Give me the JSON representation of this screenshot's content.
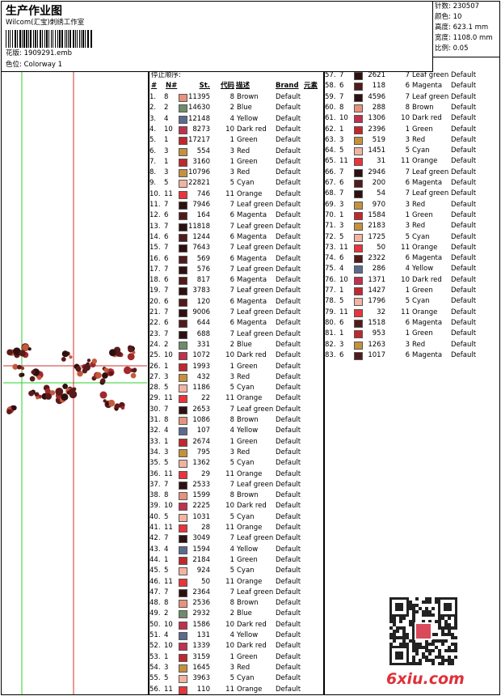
{
  "header": {
    "title": "生产作业图",
    "studio": "Wilcom(汇宝)刺绣工作室",
    "design": "花版: 1909291.emb",
    "colorway": "色位: Colorway 1"
  },
  "info": [
    "针数: 230507",
    "颜色: 10",
    "高度: 623.1 mm",
    "宽度: 1108.0 mm",
    "比例: 0.05"
  ],
  "table": {
    "title": "停止顺序:",
    "columns": [
      "#",
      "N#",
      "St.",
      "代码",
      "描述",
      "Brand",
      "元素"
    ],
    "needle_colors": {
      "1": "#c0282e",
      "2": "#6f8c6a",
      "3": "#c4913e",
      "4": "#5c6a8e",
      "5": "#f2b3a2",
      "6": "#521a1a",
      "7": "#2e1010",
      "8": "#e8917e",
      "10": "#c2304e",
      "11": "#e8343a"
    },
    "rows": [
      [
        "1.",
        "8",
        "11395",
        "8",
        "Brown",
        "Default"
      ],
      [
        "2.",
        "2",
        "14630",
        "2",
        "Blue",
        "Default"
      ],
      [
        "3.",
        "4",
        "12148",
        "4",
        "Yellow",
        "Default"
      ],
      [
        "4.",
        "10",
        "8273",
        "10",
        "Dark red",
        "Default"
      ],
      [
        "5.",
        "1",
        "17217",
        "1",
        "Green",
        "Default"
      ],
      [
        "6.",
        "3",
        "554",
        "3",
        "Red",
        "Default"
      ],
      [
        "7.",
        "1",
        "3160",
        "1",
        "Green",
        "Default"
      ],
      [
        "8.",
        "3",
        "10796",
        "3",
        "Red",
        "Default"
      ],
      [
        "9.",
        "5",
        "22821",
        "5",
        "Cyan",
        "Default"
      ],
      [
        "10.",
        "11",
        "746",
        "11",
        "Orange",
        "Default"
      ],
      [
        "11.",
        "7",
        "7946",
        "7",
        "Leaf green",
        "Default"
      ],
      [
        "12.",
        "6",
        "164",
        "6",
        "Magenta",
        "Default"
      ],
      [
        "13.",
        "7",
        "11818",
        "7",
        "Leaf green",
        "Default"
      ],
      [
        "14.",
        "6",
        "1244",
        "6",
        "Magenta",
        "Default"
      ],
      [
        "15.",
        "7",
        "7643",
        "7",
        "Leaf green",
        "Default"
      ],
      [
        "16.",
        "6",
        "569",
        "6",
        "Magenta",
        "Default"
      ],
      [
        "17.",
        "7",
        "576",
        "7",
        "Leaf green",
        "Default"
      ],
      [
        "18.",
        "6",
        "817",
        "6",
        "Magenta",
        "Default"
      ],
      [
        "19.",
        "7",
        "3783",
        "7",
        "Leaf green",
        "Default"
      ],
      [
        "20.",
        "6",
        "120",
        "6",
        "Magenta",
        "Default"
      ],
      [
        "21.",
        "7",
        "9006",
        "7",
        "Leaf green",
        "Default"
      ],
      [
        "22.",
        "6",
        "644",
        "6",
        "Magenta",
        "Default"
      ],
      [
        "23.",
        "7",
        "688",
        "7",
        "Leaf green",
        "Default"
      ],
      [
        "24.",
        "2",
        "331",
        "2",
        "Blue",
        "Default"
      ],
      [
        "25.",
        "10",
        "1072",
        "10",
        "Dark red",
        "Default"
      ],
      [
        "26.",
        "1",
        "1993",
        "1",
        "Green",
        "Default"
      ],
      [
        "27.",
        "3",
        "432",
        "3",
        "Red",
        "Default"
      ],
      [
        "28.",
        "5",
        "1186",
        "5",
        "Cyan",
        "Default"
      ],
      [
        "29.",
        "11",
        "22",
        "11",
        "Orange",
        "Default"
      ],
      [
        "30.",
        "7",
        "2653",
        "7",
        "Leaf green",
        "Default"
      ],
      [
        "31.",
        "8",
        "1086",
        "8",
        "Brown",
        "Default"
      ],
      [
        "32.",
        "4",
        "107",
        "4",
        "Yellow",
        "Default"
      ],
      [
        "33.",
        "1",
        "2674",
        "1",
        "Green",
        "Default"
      ],
      [
        "34.",
        "3",
        "795",
        "3",
        "Red",
        "Default"
      ],
      [
        "35.",
        "5",
        "1362",
        "5",
        "Cyan",
        "Default"
      ],
      [
        "36.",
        "11",
        "29",
        "11",
        "Orange",
        "Default"
      ],
      [
        "37.",
        "7",
        "2533",
        "7",
        "Leaf green",
        "Default"
      ],
      [
        "38.",
        "8",
        "1599",
        "8",
        "Brown",
        "Default"
      ],
      [
        "39.",
        "10",
        "2225",
        "10",
        "Dark red",
        "Default"
      ],
      [
        "40.",
        "5",
        "1031",
        "5",
        "Cyan",
        "Default"
      ],
      [
        "41.",
        "11",
        "28",
        "11",
        "Orange",
        "Default"
      ],
      [
        "42.",
        "7",
        "3049",
        "7",
        "Leaf green",
        "Default"
      ],
      [
        "43.",
        "4",
        "1594",
        "4",
        "Yellow",
        "Default"
      ],
      [
        "44.",
        "1",
        "2184",
        "1",
        "Green",
        "Default"
      ],
      [
        "45.",
        "5",
        "924",
        "5",
        "Cyan",
        "Default"
      ],
      [
        "46.",
        "11",
        "50",
        "11",
        "Orange",
        "Default"
      ],
      [
        "47.",
        "7",
        "2364",
        "7",
        "Leaf green",
        "Default"
      ],
      [
        "48.",
        "8",
        "2536",
        "8",
        "Brown",
        "Default"
      ],
      [
        "49.",
        "2",
        "2932",
        "2",
        "Blue",
        "Default"
      ],
      [
        "50.",
        "10",
        "1586",
        "10",
        "Dark red",
        "Default"
      ],
      [
        "51.",
        "4",
        "131",
        "4",
        "Yellow",
        "Default"
      ],
      [
        "52.",
        "10",
        "1339",
        "10",
        "Dark red",
        "Default"
      ],
      [
        "53.",
        "1",
        "3159",
        "1",
        "Green",
        "Default"
      ],
      [
        "54.",
        "3",
        "1645",
        "3",
        "Red",
        "Default"
      ],
      [
        "55.",
        "5",
        "3963",
        "5",
        "Cyan",
        "Default"
      ],
      [
        "56.",
        "11",
        "110",
        "11",
        "Orange",
        "Default"
      ],
      [
        "57.",
        "7",
        "2621",
        "7",
        "Leaf green",
        "Default"
      ],
      [
        "58.",
        "6",
        "118",
        "6",
        "Magenta",
        "Default"
      ],
      [
        "59.",
        "7",
        "4596",
        "7",
        "Leaf green",
        "Default"
      ],
      [
        "60.",
        "8",
        "288",
        "8",
        "Brown",
        "Default"
      ],
      [
        "61.",
        "10",
        "1306",
        "10",
        "Dark red",
        "Default"
      ],
      [
        "62.",
        "1",
        "2396",
        "1",
        "Green",
        "Default"
      ],
      [
        "63.",
        "3",
        "519",
        "3",
        "Red",
        "Default"
      ],
      [
        "64.",
        "5",
        "1451",
        "5",
        "Cyan",
        "Default"
      ],
      [
        "65.",
        "11",
        "31",
        "11",
        "Orange",
        "Default"
      ],
      [
        "66.",
        "7",
        "2946",
        "7",
        "Leaf green",
        "Default"
      ],
      [
        "67.",
        "6",
        "200",
        "6",
        "Magenta",
        "Default"
      ],
      [
        "68.",
        "7",
        "54",
        "7",
        "Leaf green",
        "Default"
      ],
      [
        "69.",
        "3",
        "970",
        "3",
        "Red",
        "Default"
      ],
      [
        "70.",
        "1",
        "1584",
        "1",
        "Green",
        "Default"
      ],
      [
        "71.",
        "3",
        "2183",
        "3",
        "Red",
        "Default"
      ],
      [
        "72.",
        "5",
        "1725",
        "5",
        "Cyan",
        "Default"
      ],
      [
        "73.",
        "11",
        "50",
        "11",
        "Orange",
        "Default"
      ],
      [
        "74.",
        "6",
        "2322",
        "6",
        "Magenta",
        "Default"
      ],
      [
        "75.",
        "4",
        "286",
        "4",
        "Yellow",
        "Default"
      ],
      [
        "76.",
        "10",
        "1371",
        "10",
        "Dark red",
        "Default"
      ],
      [
        "77.",
        "1",
        "1427",
        "1",
        "Green",
        "Default"
      ],
      [
        "78.",
        "5",
        "1796",
        "5",
        "Cyan",
        "Default"
      ],
      [
        "79.",
        "11",
        "32",
        "11",
        "Orange",
        "Default"
      ],
      [
        "80.",
        "6",
        "1518",
        "6",
        "Magenta",
        "Default"
      ],
      [
        "81.",
        "1",
        "953",
        "1",
        "Green",
        "Default"
      ],
      [
        "82.",
        "3",
        "1263",
        "3",
        "Red",
        "Default"
      ],
      [
        "83.",
        "6",
        "1017",
        "6",
        "Magenta",
        "Default"
      ]
    ]
  },
  "watermark": "6xiu.com"
}
